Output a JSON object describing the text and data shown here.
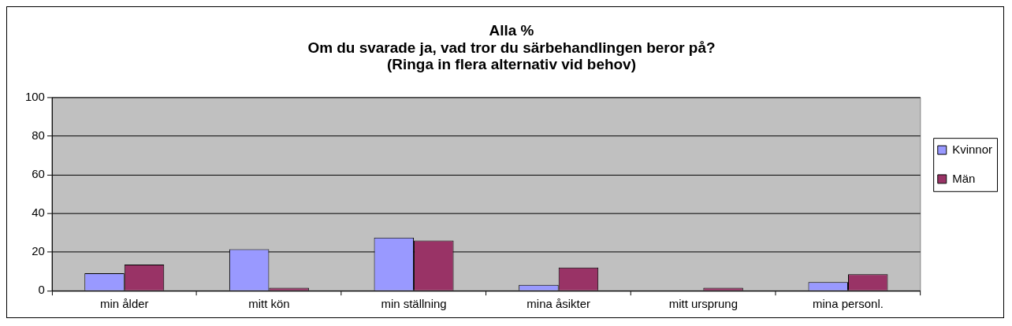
{
  "chart_data": {
    "type": "bar",
    "title": "Alla %\nOm du svarade ja, vad tror du särbehandlingen beror på?\n(Ringa in flera alternativ vid behov)",
    "categories": [
      "min ålder",
      "mitt kön",
      "min ställning",
      "mina åsikter",
      "mitt ursprung",
      "mina personl."
    ],
    "series": [
      {
        "name": "Kvinnor",
        "color": "#9999ff",
        "values": [
          9,
          21.5,
          27.5,
          3,
          0,
          4.5
        ]
      },
      {
        "name": "Män",
        "color": "#993366",
        "values": [
          13.5,
          1.5,
          26,
          12,
          1.5,
          8.5
        ]
      }
    ],
    "ylim": [
      0,
      100
    ],
    "yticks": [
      0,
      20,
      40,
      60,
      80,
      100
    ],
    "grid": "y",
    "legend": "right"
  }
}
